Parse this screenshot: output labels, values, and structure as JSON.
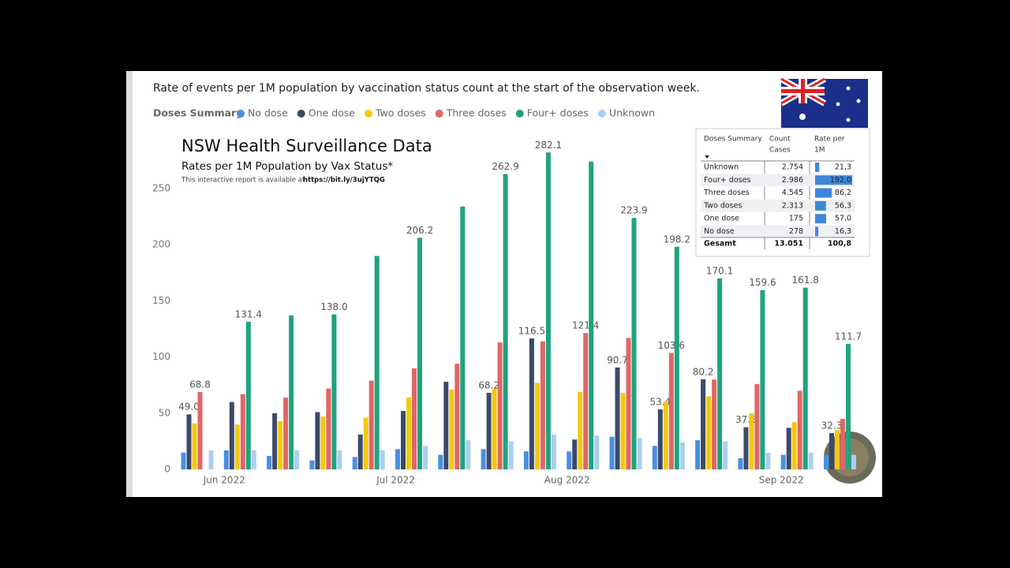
{
  "chart_data": {
    "type": "bar",
    "header": "Rate of events per 1M population by vaccination status count at the start of the observation week.",
    "legend_title": "Doses Summary",
    "title": "NSW Health Surveillance Data",
    "subtitle": "Rates per 1M Population by Vax Status*",
    "note": "This interactive report is available at",
    "link": "https://bit.ly/3ujYTQG",
    "categories": [
      null,
      "Jun 2022",
      null,
      null,
      null,
      "Jul 2022",
      null,
      null,
      null,
      "Aug 2022",
      null,
      null,
      null,
      null,
      "Sep 2022",
      null
    ],
    "series": [
      {
        "name": "No dose",
        "color": "#4a8fe0",
        "values": [
          15,
          17,
          12,
          8,
          11,
          18,
          13,
          18,
          16,
          16,
          29,
          21,
          26,
          10,
          13,
          13
        ]
      },
      {
        "name": "One dose",
        "color": "#3b4a6b",
        "values": [
          49,
          60,
          50,
          51,
          31,
          52,
          78,
          68.2,
          116.5,
          26.6,
          90.7,
          53.4,
          80.2,
          37.5,
          37,
          32.3
        ],
        "value_labels": [
          "49.0",
          null,
          null,
          null,
          null,
          null,
          null,
          "68.2",
          "116.5",
          null,
          "90.7",
          "53.4",
          "80.2",
          "37.5",
          null,
          "32.3"
        ]
      },
      {
        "name": "Two doses",
        "color": "#f2c811",
        "values": [
          41,
          40,
          43,
          47,
          46,
          64,
          71,
          72,
          77,
          69,
          68,
          60,
          65,
          50,
          42,
          35
        ]
      },
      {
        "name": "Three doses",
        "color": "#e06666",
        "values": [
          68.8,
          67,
          64,
          72,
          79,
          90,
          94,
          113,
          114,
          121.4,
          117,
          103.6,
          80,
          76,
          70,
          45
        ],
        "value_labels": [
          "68.8",
          null,
          null,
          null,
          null,
          null,
          null,
          null,
          null,
          "121.4",
          null,
          "103.6",
          null,
          null,
          null,
          null
        ]
      },
      {
        "name": "Four+ doses",
        "color": "#1fa37e",
        "values": [
          null,
          131.4,
          137,
          138,
          190,
          206.2,
          234,
          262.9,
          282.1,
          274,
          223.9,
          198.2,
          170.1,
          159.6,
          161.8,
          111.7
        ],
        "value_labels": [
          null,
          "131.4",
          null,
          "138.0",
          null,
          "206.2",
          null,
          "262.9",
          "282.1",
          null,
          "223.9",
          "198.2",
          "170.1",
          "159.6",
          "161.8",
          "111.7"
        ]
      },
      {
        "name": "Unknown",
        "color": "#a9cff0",
        "values": [
          17,
          17,
          17,
          17,
          17,
          21,
          26,
          25,
          31,
          30,
          28,
          24,
          25,
          15,
          15,
          13
        ]
      }
    ],
    "ylim": [
      0,
      250
    ],
    "yticks": [
      0,
      50,
      100,
      150,
      200,
      250
    ]
  },
  "report_table": {
    "headers": [
      [
        "Doses Summary"
      ],
      [
        "Count",
        "Cases"
      ],
      [
        "Rate per",
        "1M"
      ]
    ],
    "rows": [
      {
        "dose": "Unknown",
        "count": "2.754",
        "rate": 21.3,
        "rate_label": "21,3"
      },
      {
        "dose": "Four+ doses",
        "count": "2.986",
        "rate": 192.0,
        "rate_label": "192,0"
      },
      {
        "dose": "Three doses",
        "count": "4.545",
        "rate": 86.2,
        "rate_label": "86,2"
      },
      {
        "dose": "Two doses",
        "count": "2.313",
        "rate": 56.3,
        "rate_label": "56,3"
      },
      {
        "dose": "One dose",
        "count": "175",
        "rate": 57.0,
        "rate_label": "57,0"
      },
      {
        "dose": "No dose",
        "count": "278",
        "rate": 16.3,
        "rate_label": "16,3"
      }
    ],
    "total": {
      "dose": "Gesamt",
      "count": "13.051",
      "rate_label": "100,8"
    }
  }
}
